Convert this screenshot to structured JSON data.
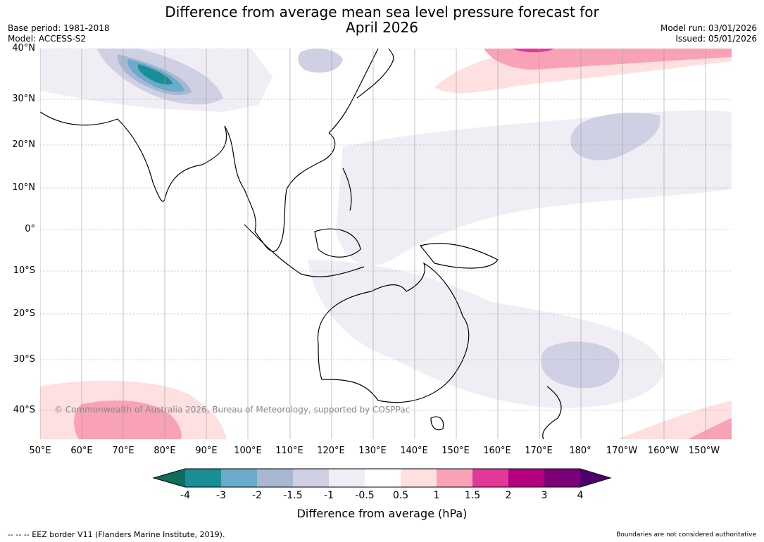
{
  "header": {
    "title_line1": "Difference from average mean sea level pressure forecast for",
    "title_line2": "April 2026",
    "base_period": "Base period: 1981-2018",
    "model": "Model: ACCESS-S2",
    "model_run": "Model run: 03/01/2026",
    "issued": "Issued: 05/01/2026"
  },
  "map": {
    "lat_labels": [
      "40°N",
      "30°N",
      "20°N",
      "10°N",
      "0°",
      "10°S",
      "20°S",
      "30°S",
      "40°S"
    ],
    "lon_labels": [
      "50°E",
      "60°E",
      "70°E",
      "80°E",
      "90°E",
      "100°E",
      "110°E",
      "120°E",
      "130°E",
      "140°E",
      "150°E",
      "160°E",
      "170°E",
      "180°",
      "170°W",
      "160°W",
      "150°W"
    ],
    "copyright": "© Commonwealth of Australia 2026, Bureau of Meteorology, supported by COSPPac",
    "regions": [
      {
        "name": "Tibetan plateau negative anomaly",
        "category": "-4 to -3"
      },
      {
        "name": "North Pacific negative anomaly",
        "category": "-1.5 to -1"
      },
      {
        "name": "Tasman Sea negative anomaly",
        "category": "-1.5 to -1"
      },
      {
        "name": "Southern Indian Ocean positive anomaly",
        "category": "1 to 1.5"
      },
      {
        "name": "North Pacific positive anomaly",
        "category": "1.5 to 2"
      }
    ]
  },
  "colorbar": {
    "ticks": [
      "-4",
      "-3",
      "-2",
      "-1.5",
      "-1",
      "-0.5",
      "0.5",
      "1",
      "1.5",
      "2",
      "3",
      "4"
    ],
    "colors": {
      "lt_m4": "#0e6d5d",
      "m4_m3": "#1a8e96",
      "m3_m2": "#6aaacc",
      "m2_m15": "#a8b8d2",
      "m15_m1": "#d0d0e4",
      "m1_m05": "#f1edf4",
      "m05_05": "#ffffff",
      "p05_1": "#fde0df",
      "p1_15": "#f9a2b7",
      "p15_2": "#e2389a",
      "p2_3": "#b4007e",
      "p3_4": "#7c0178",
      "gt_4": "#4e006b"
    },
    "title": "Difference from average (hPa)"
  },
  "footer": {
    "eez_note": "--  --  -- EEZ border V11 (Flanders Marine Institute, 2019).",
    "boundaries_note": "Boundaries are not considered authoritative"
  }
}
